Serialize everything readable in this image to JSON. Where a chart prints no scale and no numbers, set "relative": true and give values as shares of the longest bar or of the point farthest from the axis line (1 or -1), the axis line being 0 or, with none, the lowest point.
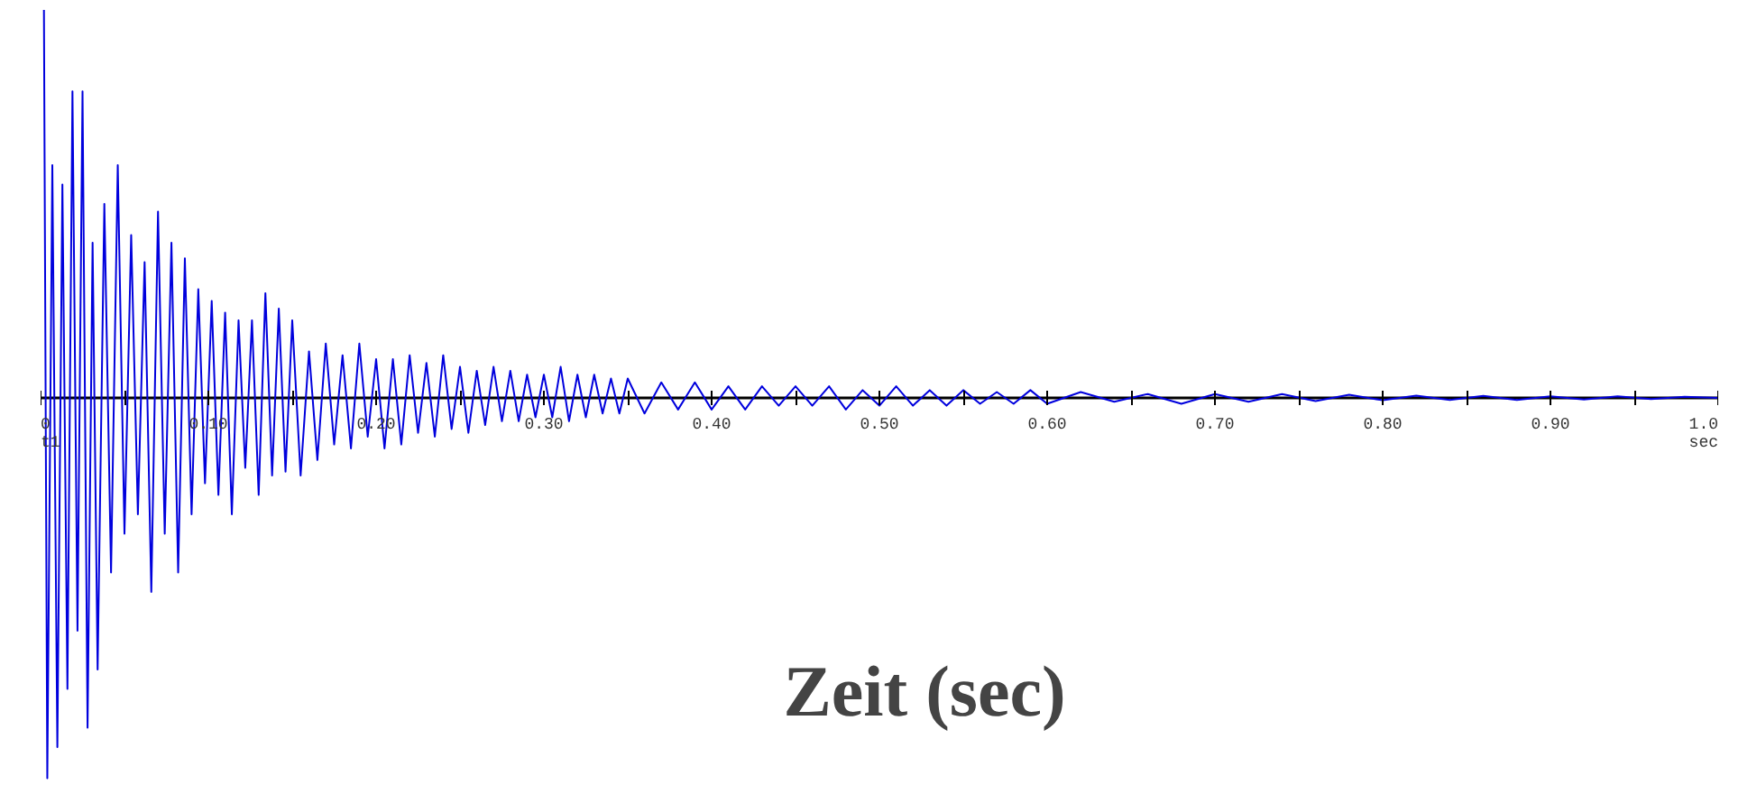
{
  "chart_data": {
    "type": "line",
    "relative": true,
    "xlabel": "Zeit (sec)",
    "annotations": [
      "t1",
      "sec"
    ],
    "xlim": [
      0,
      1.0
    ],
    "xticks": [
      0,
      {
        "value": 0.05,
        "label": null
      },
      {
        "value": 0.1,
        "label": "0.10"
      },
      {
        "value": 0.15,
        "label": null
      },
      {
        "value": 0.2,
        "label": "0.20"
      },
      {
        "value": 0.25,
        "label": null
      },
      {
        "value": 0.3,
        "label": "0.30"
      },
      {
        "value": 0.35,
        "label": null
      },
      {
        "value": 0.4,
        "label": "0.40"
      },
      {
        "value": 0.45,
        "label": null
      },
      {
        "value": 0.5,
        "label": "0.50"
      },
      {
        "value": 0.55,
        "label": null
      },
      {
        "value": 0.6,
        "label": "0.60"
      },
      {
        "value": 0.65,
        "label": null
      },
      {
        "value": 0.7,
        "label": "0.70"
      },
      {
        "value": 0.75,
        "label": null
      },
      {
        "value": 0.8,
        "label": "0.80"
      },
      {
        "value": 0.85,
        "label": null
      },
      {
        "value": 0.9,
        "label": "0.90"
      },
      {
        "value": 0.95,
        "label": null
      },
      {
        "value": 1.0,
        "label": "1.0"
      }
    ],
    "grid": false,
    "series": [
      {
        "color": "#0000dd",
        "x": [
          0.002,
          0.004,
          0.007,
          0.01,
          0.013,
          0.016,
          0.019,
          0.022,
          0.025,
          0.028,
          0.031,
          0.034,
          0.038,
          0.042,
          0.046,
          0.05,
          0.054,
          0.058,
          0.062,
          0.066,
          0.07,
          0.074,
          0.078,
          0.082,
          0.086,
          0.09,
          0.094,
          0.098,
          0.102,
          0.106,
          0.11,
          0.114,
          0.118,
          0.122,
          0.126,
          0.13,
          0.134,
          0.138,
          0.142,
          0.146,
          0.15,
          0.155,
          0.16,
          0.165,
          0.17,
          0.175,
          0.18,
          0.185,
          0.19,
          0.195,
          0.2,
          0.205,
          0.21,
          0.215,
          0.22,
          0.225,
          0.23,
          0.235,
          0.24,
          0.245,
          0.25,
          0.255,
          0.26,
          0.265,
          0.27,
          0.275,
          0.28,
          0.285,
          0.29,
          0.295,
          0.3,
          0.305,
          0.31,
          0.315,
          0.32,
          0.325,
          0.33,
          0.335,
          0.34,
          0.345,
          0.35,
          0.36,
          0.37,
          0.38,
          0.39,
          0.4,
          0.41,
          0.42,
          0.43,
          0.44,
          0.45,
          0.46,
          0.47,
          0.48,
          0.49,
          0.5,
          0.51,
          0.52,
          0.53,
          0.54,
          0.55,
          0.56,
          0.57,
          0.58,
          0.59,
          0.6,
          0.62,
          0.64,
          0.66,
          0.68,
          0.7,
          0.72,
          0.74,
          0.76,
          0.78,
          0.8,
          0.82,
          0.84,
          0.86,
          0.88,
          0.9,
          0.92,
          0.94,
          0.96,
          0.98,
          1.0
        ],
        "values": [
          1.0,
          -0.98,
          0.6,
          -0.9,
          0.55,
          -0.75,
          0.79,
          -0.6,
          0.79,
          -0.85,
          0.4,
          -0.7,
          0.5,
          -0.45,
          0.6,
          -0.35,
          0.42,
          -0.3,
          0.35,
          -0.5,
          0.48,
          -0.35,
          0.4,
          -0.45,
          0.36,
          -0.3,
          0.28,
          -0.22,
          0.25,
          -0.25,
          0.22,
          -0.3,
          0.2,
          -0.18,
          0.2,
          -0.25,
          0.27,
          -0.2,
          0.23,
          -0.19,
          0.2,
          -0.2,
          0.12,
          -0.16,
          0.14,
          -0.12,
          0.11,
          -0.13,
          0.14,
          -0.1,
          0.1,
          -0.13,
          0.1,
          -0.12,
          0.11,
          -0.09,
          0.09,
          -0.1,
          0.11,
          -0.08,
          0.08,
          -0.09,
          0.07,
          -0.07,
          0.08,
          -0.06,
          0.07,
          -0.06,
          0.06,
          -0.05,
          0.06,
          -0.05,
          0.08,
          -0.06,
          0.06,
          -0.05,
          0.06,
          -0.04,
          0.05,
          -0.04,
          0.05,
          -0.04,
          0.04,
          -0.03,
          0.04,
          -0.03,
          0.03,
          -0.03,
          0.03,
          -0.02,
          0.03,
          -0.02,
          0.03,
          -0.03,
          0.02,
          -0.02,
          0.03,
          -0.02,
          0.02,
          -0.02,
          0.02,
          -0.015,
          0.015,
          -0.015,
          0.02,
          -0.015,
          0.015,
          -0.01,
          0.01,
          -0.015,
          0.01,
          -0.01,
          0.01,
          -0.008,
          0.008,
          -0.006,
          0.006,
          -0.005,
          0.005,
          -0.005,
          0.004,
          -0.004,
          0.004,
          -0.003,
          0.003,
          0
        ]
      }
    ]
  }
}
